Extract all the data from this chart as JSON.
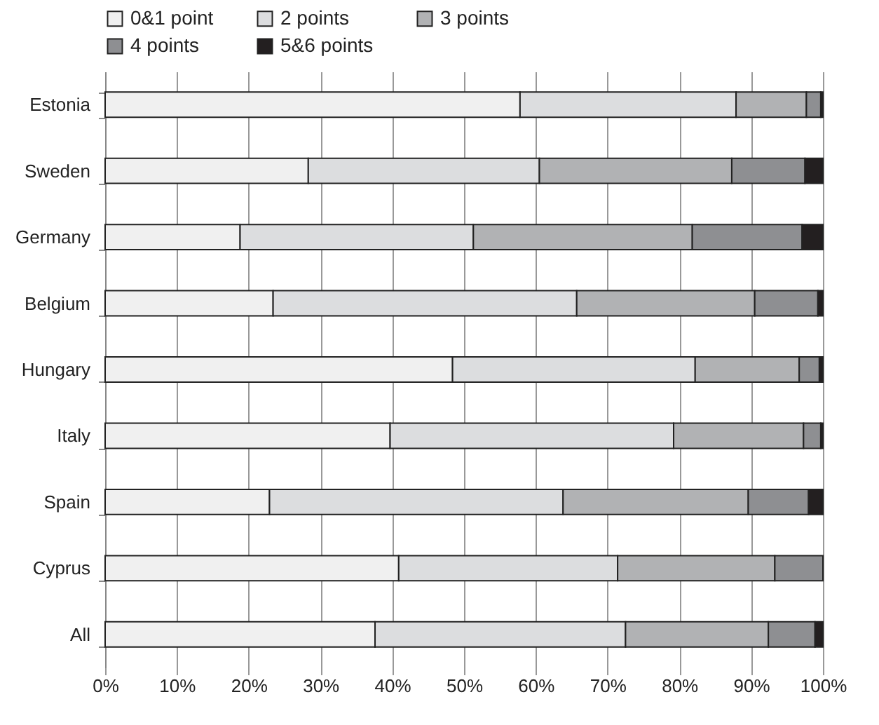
{
  "chart_data": {
    "type": "bar",
    "orientation": "horizontal",
    "stacked": true,
    "categories": [
      "Estonia",
      "Sweden",
      "Germany",
      "Belgium",
      "Hungary",
      "Italy",
      "Spain",
      "Cyprus",
      "All"
    ],
    "series": [
      {
        "name": "0&1 point",
        "color": "#f0f0f0",
        "values": [
          57.8,
          28.3,
          18.8,
          23.4,
          48.4,
          39.7,
          22.9,
          40.9,
          37.6
        ]
      },
      {
        "name": "2 points",
        "color": "#dcdddf",
        "values": [
          30.1,
          32.2,
          32.5,
          42.3,
          33.8,
          39.5,
          40.9,
          30.5,
          34.9
        ]
      },
      {
        "name": "3 points",
        "color": "#b1b2b4",
        "values": [
          9.8,
          26.8,
          30.5,
          24.8,
          14.5,
          18.1,
          25.8,
          21.9,
          19.9
        ]
      },
      {
        "name": "4 points",
        "color": "#8e8f92",
        "values": [
          2.0,
          10.2,
          15.3,
          8.8,
          2.8,
          2.4,
          8.4,
          6.7,
          6.5
        ]
      },
      {
        "name": "5&6 points",
        "color": "#231f20",
        "values": [
          0.3,
          2.5,
          2.9,
          0.7,
          0.5,
          0.3,
          2.0,
          0,
          1.1
        ]
      }
    ],
    "xlim": [
      0,
      100
    ],
    "xticks": [
      {
        "value": 0,
        "label": "0%"
      },
      {
        "value": 10,
        "label": "10%"
      },
      {
        "value": 20,
        "label": "20%"
      },
      {
        "value": 30,
        "label": "30%"
      },
      {
        "value": 40,
        "label": "40%"
      },
      {
        "value": 50,
        "label": "50%"
      },
      {
        "value": 60,
        "label": "60%"
      },
      {
        "value": 70,
        "label": "70%"
      },
      {
        "value": 80,
        "label": "80%"
      },
      {
        "value": 90,
        "label": "90%"
      },
      {
        "value": 100,
        "label": "100%"
      }
    ],
    "grid": "x",
    "legend": "top"
  }
}
